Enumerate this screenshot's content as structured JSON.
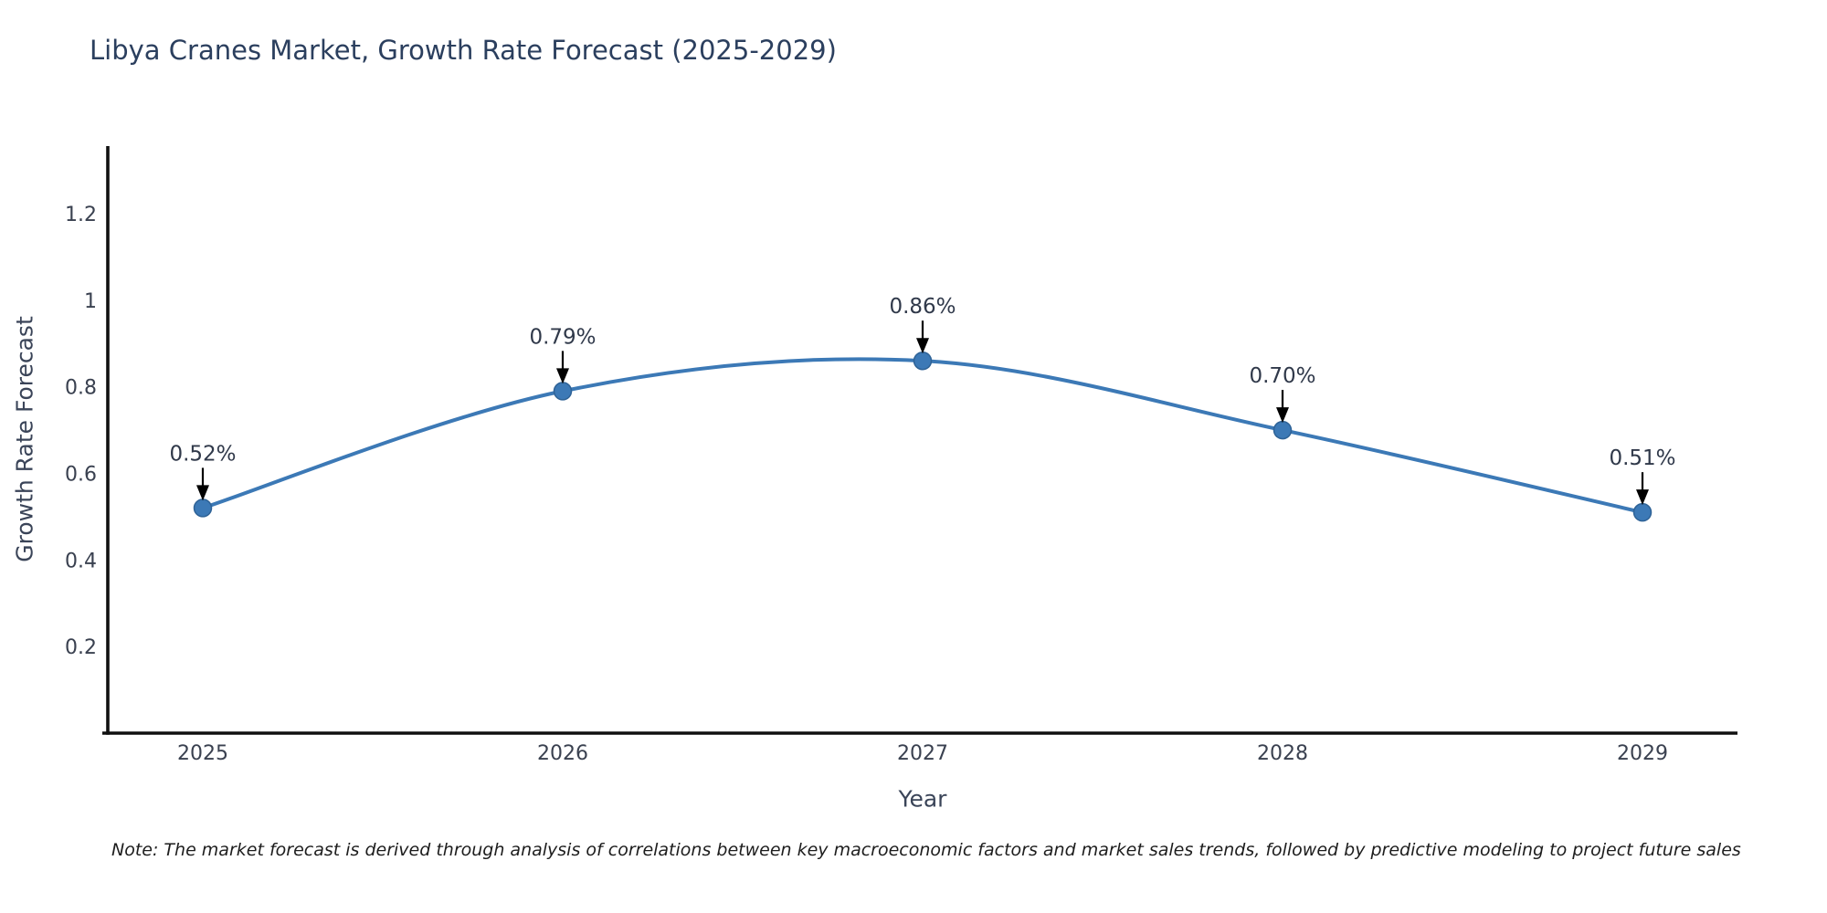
{
  "title": "Libya Cranes Market, Growth Rate Forecast (2025-2029)",
  "note": "Note: The market forecast is derived through analysis of correlations between key macroeconomic factors and market sales trends, followed by predictive modeling to project future sales",
  "chart_data": {
    "type": "line",
    "title": "Libya Cranes Market, Growth Rate Forecast (2025-2029)",
    "categories": [
      "2025",
      "2026",
      "2027",
      "2028",
      "2029"
    ],
    "series": [
      {
        "name": "Growth Rate Forecast",
        "values": [
          0.52,
          0.79,
          0.86,
          0.7,
          0.51
        ]
      }
    ],
    "point_labels": [
      "0.52%",
      "0.79%",
      "0.86%",
      "0.70%",
      "0.51%"
    ],
    "xlabel": "Year",
    "ylabel": "Growth Rate Forecast",
    "yticks": [
      0.2,
      0.4,
      0.6,
      0.8,
      1,
      1.2
    ],
    "ylim": [
      0,
      1.356
    ],
    "grid": false,
    "legend": "none",
    "line_shape": "spline",
    "colors": {
      "line": "#3c79b6",
      "marker": "#3c79b6",
      "marker_edge": "#2e6296",
      "arrow": "#000000",
      "axis_spine": "#101010",
      "tick_text": "#3a4150",
      "annotation_text": "#30394a",
      "title_text": "#2b3f5e"
    }
  }
}
